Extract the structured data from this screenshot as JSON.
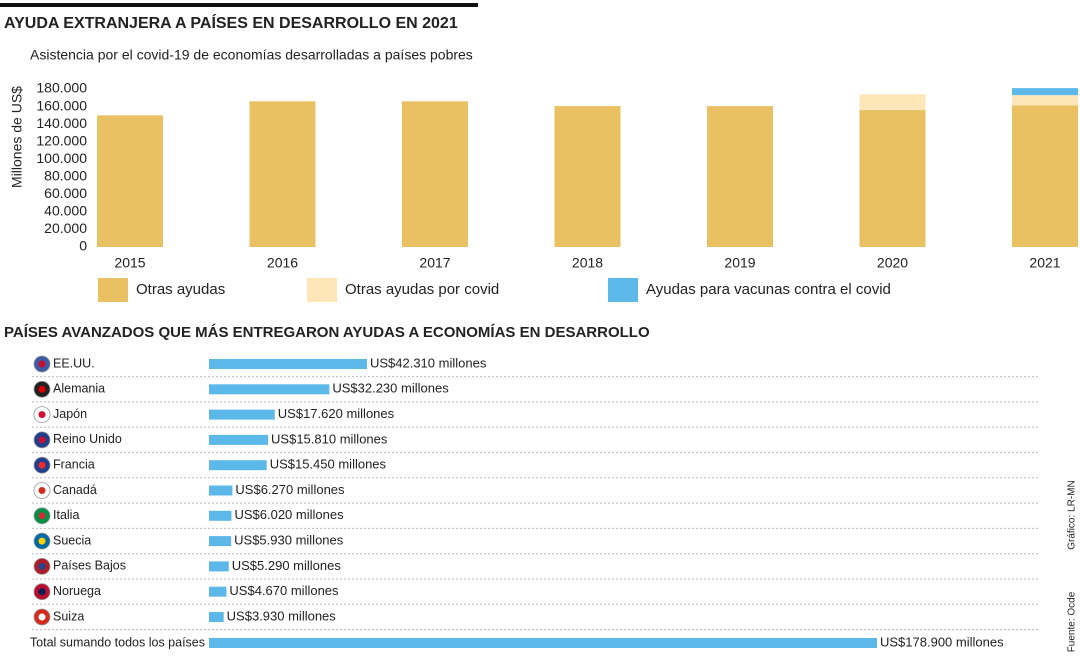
{
  "chart_data": [
    {
      "type": "stacked-bar",
      "title": "AYUDA EXTRANJERA A PAÍSES EN DESARROLLO EN 2021",
      "subtitle": "Asistencia por el covid-19 de economías desarrolladas a países pobres",
      "y_label": "Millones de US$",
      "categories": [
        "2015",
        "2016",
        "2017",
        "2018",
        "2019",
        "2020",
        "2021"
      ],
      "series": [
        {
          "name": "Otras ayudas",
          "color": "#e9c162",
          "values": [
            150000,
            166000,
            166000,
            160500,
            160500,
            156000,
            161500
          ]
        },
        {
          "name": "Otras ayudas por covid",
          "color": "#fde6b8",
          "values": [
            null,
            null,
            null,
            null,
            null,
            18000,
            11500
          ]
        },
        {
          "name": "Ayudas para vacunas contra el covid",
          "color": "#5cb8e8",
          "values": [
            null,
            null,
            null,
            null,
            null,
            null,
            8000
          ]
        }
      ],
      "ylim": [
        0,
        180000
      ],
      "yticks": [
        0,
        {
          "value": 20000,
          "label": "20.000"
        },
        {
          "value": 40000,
          "label": "40.000"
        },
        {
          "value": 60000,
          "label": "60.000"
        },
        {
          "value": 80000,
          "label": "80.000"
        },
        {
          "value": 100000,
          "label": "100.000"
        },
        {
          "value": 120000,
          "label": "120.000"
        },
        {
          "value": 140000,
          "label": "140.000"
        },
        {
          "value": 160000,
          "label": "160.000"
        },
        {
          "value": 180000,
          "label": "180.000"
        }
      ]
    },
    {
      "type": "hbar",
      "title": "PAÍSES AVANZADOS QUE MÁS ENTREGARON AYUDAS A ECONOMÍAS EN DESARROLLO",
      "categories": [
        "EE.UU.",
        "Alemania",
        "Japón",
        "Reino Unido",
        "Francia",
        "Canadá",
        "Italia",
        "Suecia",
        "Países Bajos",
        "Noruega",
        "Suiza",
        "Total sumando todos los países"
      ],
      "values": [
        42310,
        32230,
        17620,
        15810,
        15450,
        6270,
        6020,
        5930,
        5290,
        4670,
        3930,
        178900
      ],
      "value_labels": [
        "US$42.310 millones",
        "US$32.230 millones",
        "US$17.620 millones",
        "US$15.810 millones",
        "US$15.450 millones",
        "US$6.270 millones",
        "US$6.020 millones",
        "US$5.930 millones",
        "US$5.290 millones",
        "US$4.670 millones",
        "US$3.930 millones",
        "US$178.900 millones"
      ],
      "color": "#5cb8e8"
    }
  ],
  "credits": {
    "graphic": "Gráfico: LR-MN",
    "source": "Fuente: Ocde"
  }
}
